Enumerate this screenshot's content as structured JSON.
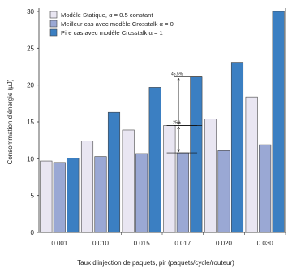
{
  "chart_data": {
    "type": "bar",
    "title": "",
    "xlabel": "Taux d'injection de paquets, pir (paquets/cycle/routeur)",
    "ylabel": "Consommation d'énergie (µJ)",
    "ylim": [
      0,
      30
    ],
    "yticks": [
      "0",
      "5",
      "10",
      "15",
      "20",
      "25",
      "30"
    ],
    "categories": [
      "0.001",
      "0.010",
      "0.015",
      "0.017",
      "0.020",
      "0.030"
    ],
    "series": [
      {
        "name": "Modèle Statique, α = 0.5 constant",
        "color": "#e9e6f2",
        "values": [
          9.7,
          12.4,
          13.9,
          14.5,
          15.4,
          18.4
        ]
      },
      {
        "name": "Meilleur cas avec modèle Crosstalk α = 0",
        "color": "#9aa8d4",
        "values": [
          9.5,
          10.3,
          10.7,
          10.8,
          11.1,
          11.9
        ]
      },
      {
        "name": "Pire cas avec modèle Crosstalk α = 1",
        "color": "#3b7fc2",
        "values": [
          10.1,
          16.3,
          19.7,
          21.1,
          23.1,
          30.0
        ]
      }
    ],
    "annotations": [
      {
        "label": "45.5%",
        "category": "0.017",
        "from": 14.5,
        "to": 21.1
      },
      {
        "label": "25%",
        "category": "0.017",
        "from": 10.8,
        "to": 14.5
      }
    ],
    "grid": false,
    "legend_position": "top-left"
  }
}
